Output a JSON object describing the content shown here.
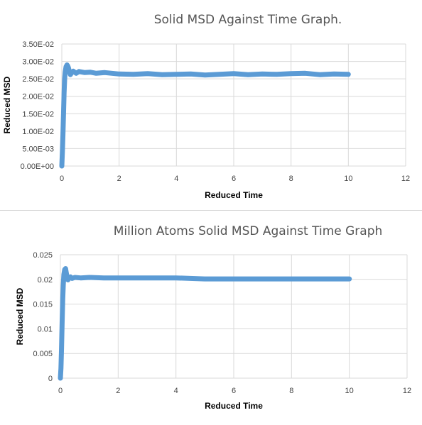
{
  "chart_data": [
    {
      "type": "line",
      "title": "Solid MSD Against Time Graph.",
      "xlabel": "Reduced Time",
      "ylabel": "Reduced MSD",
      "xlim": [
        0,
        12
      ],
      "ylim": [
        0,
        0.035
      ],
      "grid": true,
      "x_ticks": [
        "0",
        "2",
        "4",
        "6",
        "8",
        "10",
        "12"
      ],
      "y_ticks": [
        "0.00E+00",
        "5.00E-03",
        "1.00E-02",
        "1.50E-02",
        "2.00E-02",
        "2.50E-02",
        "3.00E-02",
        "3.50E-02"
      ],
      "color": "#5b9bd5",
      "series": [
        {
          "x": [
            0,
            0.02,
            0.04,
            0.06,
            0.08,
            0.1,
            0.12,
            0.15,
            0.18,
            0.2,
            0.23,
            0.26,
            0.3,
            0.35,
            0.4,
            0.5,
            0.6,
            0.8,
            1.0,
            1.2,
            1.5,
            2.0,
            2.5,
            3.0,
            3.5,
            4.0,
            4.5,
            5.0,
            5.5,
            6.0,
            6.5,
            7.0,
            7.5,
            8.0,
            8.5,
            9.0,
            9.5,
            10.0
          ],
          "y": [
            0.0,
            0.004,
            0.009,
            0.015,
            0.021,
            0.025,
            0.027,
            0.0285,
            0.029,
            0.0288,
            0.0282,
            0.0272,
            0.0262,
            0.0268,
            0.0272,
            0.0266,
            0.0271,
            0.0268,
            0.0269,
            0.0266,
            0.0268,
            0.0264,
            0.0263,
            0.0265,
            0.0262,
            0.0263,
            0.0264,
            0.0261,
            0.0263,
            0.0265,
            0.0262,
            0.0264,
            0.0263,
            0.0265,
            0.0266,
            0.0262,
            0.0264,
            0.0263
          ]
        }
      ]
    },
    {
      "type": "line",
      "title": "Million Atoms Solid MSD Against Time Graph",
      "xlabel": "Reduced Time",
      "ylabel": "Reduced MSD",
      "xlim": [
        0,
        12
      ],
      "ylim": [
        0,
        0.025
      ],
      "grid": true,
      "x_ticks": [
        "0",
        "2",
        "4",
        "6",
        "8",
        "10",
        "12"
      ],
      "y_ticks": [
        "0",
        "0.005",
        "0.01",
        "0.015",
        "0.02",
        "0.025"
      ],
      "color": "#5b9bd5",
      "series": [
        {
          "x": [
            0,
            0.02,
            0.04,
            0.06,
            0.08,
            0.1,
            0.12,
            0.15,
            0.18,
            0.2,
            0.23,
            0.26,
            0.3,
            0.35,
            0.4,
            0.5,
            0.7,
            1.0,
            1.5,
            2.0,
            3.0,
            4.0,
            5.0,
            6.0,
            7.0,
            8.0,
            9.0,
            10.0
          ],
          "y": [
            0.0,
            0.002,
            0.006,
            0.011,
            0.016,
            0.019,
            0.021,
            0.022,
            0.0222,
            0.0215,
            0.0205,
            0.0199,
            0.0203,
            0.0205,
            0.0202,
            0.0204,
            0.0203,
            0.0204,
            0.0203,
            0.0203,
            0.0203,
            0.0203,
            0.0201,
            0.0201,
            0.0201,
            0.0201,
            0.0201,
            0.0201
          ]
        }
      ]
    }
  ]
}
